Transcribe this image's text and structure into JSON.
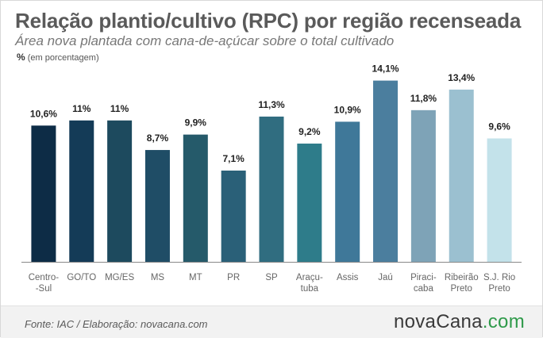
{
  "title": "Relação plantio/cultivo (RPC) por região recenseada",
  "subtitle": "Área nova plantada com cana-de-açúcar sobre o total cultivado",
  "unit_symbol": "%",
  "unit_text": "(em porcentagem)",
  "source": "Fonte: IAC / Elaboração: novacana.com",
  "brand": {
    "name": "novaCana",
    "suffix": ".com",
    "suffix_color": "#2f9a4a"
  },
  "chart_data": {
    "type": "bar",
    "categories": [
      [
        "Centro-",
        "-Sul"
      ],
      [
        "GO/TO"
      ],
      [
        "MG/ES"
      ],
      [
        "MS"
      ],
      [
        "MT"
      ],
      [
        "PR"
      ],
      [
        "SP"
      ],
      [
        "Araçu-",
        "tuba"
      ],
      [
        "Assis"
      ],
      [
        "Jaú"
      ],
      [
        "Piraci-",
        "caba"
      ],
      [
        "Ribeirão",
        "Preto"
      ],
      [
        "S.J. Rio",
        "Preto"
      ]
    ],
    "values": [
      10.6,
      11,
      11,
      8.7,
      9.9,
      7.1,
      11.3,
      9.2,
      10.9,
      14.1,
      11.8,
      13.4,
      9.6
    ],
    "data_labels": [
      "10,6%",
      "11%",
      "11%",
      "8,7%",
      "9,9%",
      "7,1%",
      "11,3%",
      "9,2%",
      "10,9%",
      "14,1%",
      "11,8%",
      "13,4%",
      "9,6%"
    ],
    "colors": [
      "#0d2c46",
      "#143b57",
      "#1d4a5e",
      "#1f4d66",
      "#255a6a",
      "#2a6078",
      "#306d80",
      "#2e7c8a",
      "#3f7899",
      "#4b7e9e",
      "#7ea3b7",
      "#9bc0d0",
      "#c3e2ea"
    ],
    "ylim": [
      0,
      15
    ],
    "grid": false
  }
}
